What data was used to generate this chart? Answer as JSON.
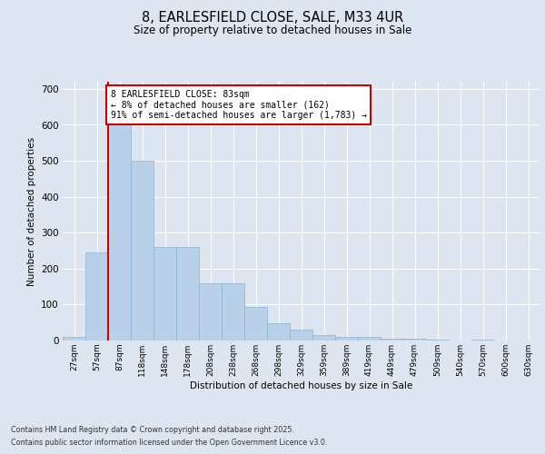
{
  "title_line1": "8, EARLESFIELD CLOSE, SALE, M33 4UR",
  "title_line2": "Size of property relative to detached houses in Sale",
  "xlabel": "Distribution of detached houses by size in Sale",
  "ylabel": "Number of detached properties",
  "bar_labels": [
    "27sqm",
    "57sqm",
    "87sqm",
    "118sqm",
    "148sqm",
    "178sqm",
    "208sqm",
    "238sqm",
    "268sqm",
    "298sqm",
    "329sqm",
    "359sqm",
    "389sqm",
    "419sqm",
    "449sqm",
    "479sqm",
    "509sqm",
    "540sqm",
    "570sqm",
    "600sqm",
    "630sqm"
  ],
  "bar_values": [
    10,
    245,
    615,
    500,
    260,
    260,
    160,
    160,
    93,
    47,
    30,
    14,
    10,
    10,
    5,
    5,
    3,
    0,
    3,
    0,
    0
  ],
  "bar_color": "#b8d0e8",
  "bar_edge_color": "#88b4d4",
  "vline_x_idx": 1.5,
  "vline_color": "#cc0000",
  "annotation_text": "8 EARLESFIELD CLOSE: 83sqm\n← 8% of detached houses are smaller (162)\n91% of semi-detached houses are larger (1,783) →",
  "annotation_box_color": "#ffffff",
  "annotation_box_edge_color": "#cc0000",
  "ylim": [
    0,
    720
  ],
  "yticks": [
    0,
    100,
    200,
    300,
    400,
    500,
    600,
    700
  ],
  "background_color": "#dde6f0",
  "plot_bg_color": "#dde6f0",
  "grid_color": "#ffffff",
  "footer_line1": "Contains HM Land Registry data © Crown copyright and database right 2025.",
  "footer_line2": "Contains public sector information licensed under the Open Government Licence v3.0."
}
